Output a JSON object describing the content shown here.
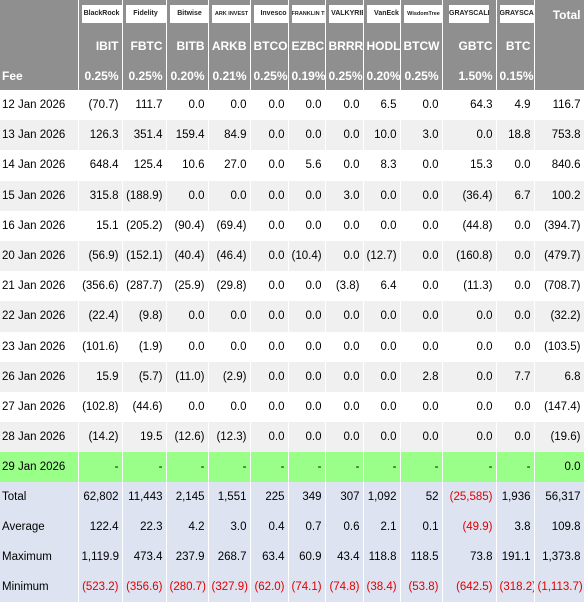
{
  "issuers": [
    {
      "logo": "BlackRock",
      "ticker": "IBIT",
      "fee": "0.25%"
    },
    {
      "logo": "Fidelity",
      "ticker": "FBTC",
      "fee": "0.25%"
    },
    {
      "logo": "Bitwise",
      "ticker": "BITB",
      "fee": "0.20%"
    },
    {
      "logo": "ARK INVEST",
      "ticker": "ARKB",
      "fee": "0.21%"
    },
    {
      "logo": "Invesco",
      "ticker": "BTCO",
      "fee": "0.25%"
    },
    {
      "logo": "FRANKLIN TEMPLETON",
      "ticker": "EZBC",
      "fee": "0.19%"
    },
    {
      "logo": "VALKYRIE",
      "ticker": "BRRR",
      "fee": "0.25%"
    },
    {
      "logo": "VanEck",
      "ticker": "HODL",
      "fee": "0.20%"
    },
    {
      "logo": "WisdomTree",
      "ticker": "BTCW",
      "fee": "0.25%"
    },
    {
      "logo": "GRAYSCALE",
      "ticker": "GBTC",
      "fee": "1.50%"
    },
    {
      "logo": "GRAYSCALE",
      "ticker": "BTC",
      "fee": "0.15%"
    }
  ],
  "header": {
    "total_label": "Total",
    "fee_label": "Fee"
  },
  "rows": [
    {
      "date": "12 Jan 2026",
      "values": [
        "(70.7)",
        "111.7",
        "0.0",
        "0.0",
        "0.0",
        "0.0",
        "0.0",
        "6.5",
        "0.0",
        "64.3",
        "4.9"
      ],
      "total": "116.7"
    },
    {
      "date": "13 Jan 2026",
      "values": [
        "126.3",
        "351.4",
        "159.4",
        "84.9",
        "0.0",
        "0.0",
        "0.0",
        "10.0",
        "3.0",
        "0.0",
        "18.8"
      ],
      "total": "753.8"
    },
    {
      "date": "14 Jan 2026",
      "values": [
        "648.4",
        "125.4",
        "10.6",
        "27.0",
        "0.0",
        "5.6",
        "0.0",
        "8.3",
        "0.0",
        "15.3",
        "0.0"
      ],
      "total": "840.6"
    },
    {
      "date": "15 Jan 2026",
      "values": [
        "315.8",
        "(188.9)",
        "0.0",
        "0.0",
        "0.0",
        "0.0",
        "3.0",
        "0.0",
        "0.0",
        "(36.4)",
        "6.7"
      ],
      "total": "100.2"
    },
    {
      "date": "16 Jan 2026",
      "values": [
        "15.1",
        "(205.2)",
        "(90.4)",
        "(69.4)",
        "0.0",
        "0.0",
        "0.0",
        "0.0",
        "0.0",
        "(44.8)",
        "0.0"
      ],
      "total": "(394.7)"
    },
    {
      "date": "20 Jan 2026",
      "values": [
        "(56.9)",
        "(152.1)",
        "(40.4)",
        "(46.4)",
        "0.0",
        "(10.4)",
        "0.0",
        "(12.7)",
        "0.0",
        "(160.8)",
        "0.0"
      ],
      "total": "(479.7)"
    },
    {
      "date": "21 Jan 2026",
      "values": [
        "(356.6)",
        "(287.7)",
        "(25.9)",
        "(29.8)",
        "0.0",
        "0.0",
        "(3.8)",
        "6.4",
        "0.0",
        "(11.3)",
        "0.0"
      ],
      "total": "(708.7)"
    },
    {
      "date": "22 Jan 2026",
      "values": [
        "(22.4)",
        "(9.8)",
        "0.0",
        "0.0",
        "0.0",
        "0.0",
        "0.0",
        "0.0",
        "0.0",
        "0.0",
        "0.0"
      ],
      "total": "(32.2)"
    },
    {
      "date": "23 Jan 2026",
      "values": [
        "(101.6)",
        "(1.9)",
        "0.0",
        "0.0",
        "0.0",
        "0.0",
        "0.0",
        "0.0",
        "0.0",
        "0.0",
        "0.0"
      ],
      "total": "(103.5)"
    },
    {
      "date": "26 Jan 2026",
      "values": [
        "15.9",
        "(5.7)",
        "(11.0)",
        "(2.9)",
        "0.0",
        "0.0",
        "0.0",
        "0.0",
        "2.8",
        "0.0",
        "7.7"
      ],
      "total": "6.8"
    },
    {
      "date": "27 Jan 2026",
      "values": [
        "(102.8)",
        "(44.6)",
        "0.0",
        "0.0",
        "0.0",
        "0.0",
        "0.0",
        "0.0",
        "0.0",
        "0.0",
        "0.0"
      ],
      "total": "(147.4)"
    },
    {
      "date": "28 Jan 2026",
      "values": [
        "(14.2)",
        "19.5",
        "(12.6)",
        "(12.3)",
        "0.0",
        "0.0",
        "0.0",
        "0.0",
        "0.0",
        "0.0",
        "0.0"
      ],
      "total": "(19.6)"
    }
  ],
  "pending": {
    "date": "29 Jan 2026",
    "values": [
      "-",
      "-",
      "-",
      "-",
      "-",
      "-",
      "-",
      "-",
      "-",
      "-",
      "-"
    ],
    "total": "0.0"
  },
  "summary": [
    {
      "label": "Total",
      "values": [
        "62,802",
        "11,443",
        "2,145",
        "1,551",
        "225",
        "349",
        "307",
        "1,092",
        "52",
        "(25,585)",
        "1,936"
      ],
      "total": "56,317"
    },
    {
      "label": "Average",
      "values": [
        "122.4",
        "22.3",
        "4.2",
        "3.0",
        "0.4",
        "0.7",
        "0.6",
        "2.1",
        "0.1",
        "(49.9)",
        "3.8"
      ],
      "total": "109.8"
    },
    {
      "label": "Maximum",
      "values": [
        "1,119.9",
        "473.4",
        "237.9",
        "268.7",
        "63.4",
        "60.9",
        "43.4",
        "118.8",
        "118.5",
        "73.8",
        "191.1"
      ],
      "total": "1,373.8"
    },
    {
      "label": "Minimum",
      "values": [
        "(523.2)",
        "(356.6)",
        "(280.7)",
        "(327.9)",
        "(62.0)",
        "(74.1)",
        "(74.8)",
        "(38.4)",
        "(53.8)",
        "(642.5)",
        "(318.2)"
      ],
      "total": "(1,113.7)"
    }
  ],
  "colors": {
    "header_bg": "#8f8f8f",
    "negative": "#e00000",
    "pending_bg": "#99ff88",
    "summary_bg": "#dde3f0",
    "alt_row_bg": "#f0f0f0"
  }
}
